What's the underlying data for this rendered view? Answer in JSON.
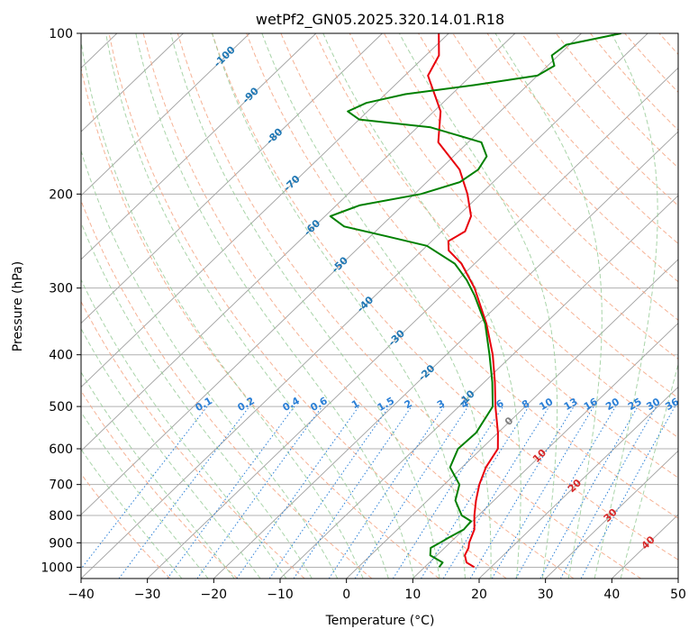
{
  "chart_data": {
    "type": "line",
    "subtype": "skew-t log-p diagram",
    "title": "wetPf2_GN05.2025.320.14.01.R18",
    "xlabel": "Temperature (°C)",
    "ylabel": "Pressure (hPa)",
    "xlim": [
      -40,
      50
    ],
    "ylim": [
      1050,
      100
    ],
    "x_ticks": [
      -40,
      -30,
      -20,
      -10,
      0,
      10,
      20,
      30,
      40,
      50
    ],
    "y_ticks": [
      100,
      200,
      300,
      400,
      500,
      600,
      700,
      800,
      900,
      1000
    ],
    "grid": true,
    "colors": {
      "temperature": "#e8000b",
      "dewpoint": "#008000",
      "isotherm": "#a0a0a0",
      "dry_adiabat": "#f4a582",
      "moist_adiabat": "#93c993",
      "mixing_ratio": "#2a7fd6",
      "isopleth_label_blue": "#1f77b4",
      "isopleth_label_red": "#d62728"
    },
    "series": [
      {
        "name": "Temperature",
        "color": "#e8000b",
        "points": [
          {
            "p": 1000,
            "t": 17.5
          },
          {
            "p": 980,
            "t": 15.6
          },
          {
            "p": 950,
            "t": 14.2
          },
          {
            "p": 920,
            "t": 13.6
          },
          {
            "p": 900,
            "t": 12.9
          },
          {
            "p": 850,
            "t": 11.6
          },
          {
            "p": 800,
            "t": 9.4
          },
          {
            "p": 750,
            "t": 7.3
          },
          {
            "p": 700,
            "t": 5.3
          },
          {
            "p": 650,
            "t": 3.6
          },
          {
            "p": 600,
            "t": 2.5
          },
          {
            "p": 560,
            "t": 0.0
          },
          {
            "p": 500,
            "t": -4.5
          },
          {
            "p": 450,
            "t": -8.4
          },
          {
            "p": 400,
            "t": -13.0
          },
          {
            "p": 350,
            "t": -18.8
          },
          {
            "p": 300,
            "t": -26.2
          },
          {
            "p": 270,
            "t": -32.0
          },
          {
            "p": 255,
            "t": -36.0
          },
          {
            "p": 245,
            "t": -37.5
          },
          {
            "p": 235,
            "t": -36.5
          },
          {
            "p": 220,
            "t": -38.0
          },
          {
            "p": 200,
            "t": -42.0
          },
          {
            "p": 180,
            "t": -47.0
          },
          {
            "p": 160,
            "t": -54.5
          },
          {
            "p": 140,
            "t": -59.0
          },
          {
            "p": 120,
            "t": -66.5
          },
          {
            "p": 110,
            "t": -68.0
          },
          {
            "p": 100,
            "t": -71.5
          }
        ]
      },
      {
        "name": "Dewpoint",
        "color": "#008000",
        "points": [
          {
            "p": 1000,
            "t": 12.2
          },
          {
            "p": 980,
            "t": 12.0
          },
          {
            "p": 950,
            "t": 9.0
          },
          {
            "p": 920,
            "t": 7.9
          },
          {
            "p": 900,
            "t": 8.5
          },
          {
            "p": 880,
            "t": 9.0
          },
          {
            "p": 850,
            "t": 10.0
          },
          {
            "p": 820,
            "t": 9.8
          },
          {
            "p": 800,
            "t": 7.5
          },
          {
            "p": 780,
            "t": 6.2
          },
          {
            "p": 750,
            "t": 4.2
          },
          {
            "p": 700,
            "t": 2.3
          },
          {
            "p": 650,
            "t": -1.8
          },
          {
            "p": 600,
            "t": -3.5
          },
          {
            "p": 560,
            "t": -3.3
          },
          {
            "p": 500,
            "t": -4.9
          },
          {
            "p": 450,
            "t": -8.8
          },
          {
            "p": 400,
            "t": -13.5
          },
          {
            "p": 350,
            "t": -19.0
          },
          {
            "p": 310,
            "t": -25.0
          },
          {
            "p": 290,
            "t": -28.6
          },
          {
            "p": 270,
            "t": -33.0
          },
          {
            "p": 250,
            "t": -40.0
          },
          {
            "p": 240,
            "t": -47.5
          },
          {
            "p": 230,
            "t": -55.5
          },
          {
            "p": 220,
            "t": -59.2
          },
          {
            "p": 210,
            "t": -56.5
          },
          {
            "p": 200,
            "t": -49.0
          },
          {
            "p": 190,
            "t": -45.0
          },
          {
            "p": 180,
            "t": -44.2
          },
          {
            "p": 170,
            "t": -45.0
          },
          {
            "p": 160,
            "t": -48.0
          },
          {
            "p": 150,
            "t": -58.0
          },
          {
            "p": 145,
            "t": -70.0
          },
          {
            "p": 140,
            "t": -73.0
          },
          {
            "p": 135,
            "t": -71.5
          },
          {
            "p": 130,
            "t": -67.0
          },
          {
            "p": 125,
            "t": -58.0
          },
          {
            "p": 120,
            "t": -50.0
          },
          {
            "p": 115,
            "t": -49.0
          },
          {
            "p": 110,
            "t": -51.0
          },
          {
            "p": 105,
            "t": -50.5
          },
          {
            "p": 100,
            "t": -44.0
          }
        ]
      }
    ],
    "isotherm_labels": [
      {
        "text": "-100",
        "p": 110,
        "color": "blue"
      },
      {
        "text": "-90",
        "p": 130,
        "color": "blue"
      },
      {
        "text": "-80",
        "p": 155,
        "color": "blue"
      },
      {
        "text": "-70",
        "p": 190,
        "color": "blue"
      },
      {
        "text": "-60",
        "p": 230,
        "color": "blue"
      },
      {
        "text": "-50",
        "p": 270,
        "color": "blue"
      },
      {
        "text": "-40",
        "p": 320,
        "color": "blue"
      },
      {
        "text": "-30",
        "p": 370,
        "color": "blue"
      },
      {
        "text": "-20",
        "p": 430,
        "color": "blue"
      },
      {
        "text": "-10",
        "p": 480,
        "color": "blue"
      },
      {
        "text": "0",
        "p": 530,
        "color": "gray"
      },
      {
        "text": "10",
        "p": 615,
        "color": "red"
      },
      {
        "text": "20",
        "p": 700,
        "color": "red"
      },
      {
        "text": "30",
        "p": 795,
        "color": "red"
      },
      {
        "text": "40",
        "p": 895,
        "color": "red"
      }
    ],
    "mixing_ratio_labels": [
      "0.1",
      "0.2",
      "0.4",
      "0.6",
      "1",
      "1.5",
      "2",
      "3",
      "4",
      "6",
      "8",
      "10",
      "13",
      "16",
      "20",
      "25",
      "30",
      "36"
    ]
  }
}
